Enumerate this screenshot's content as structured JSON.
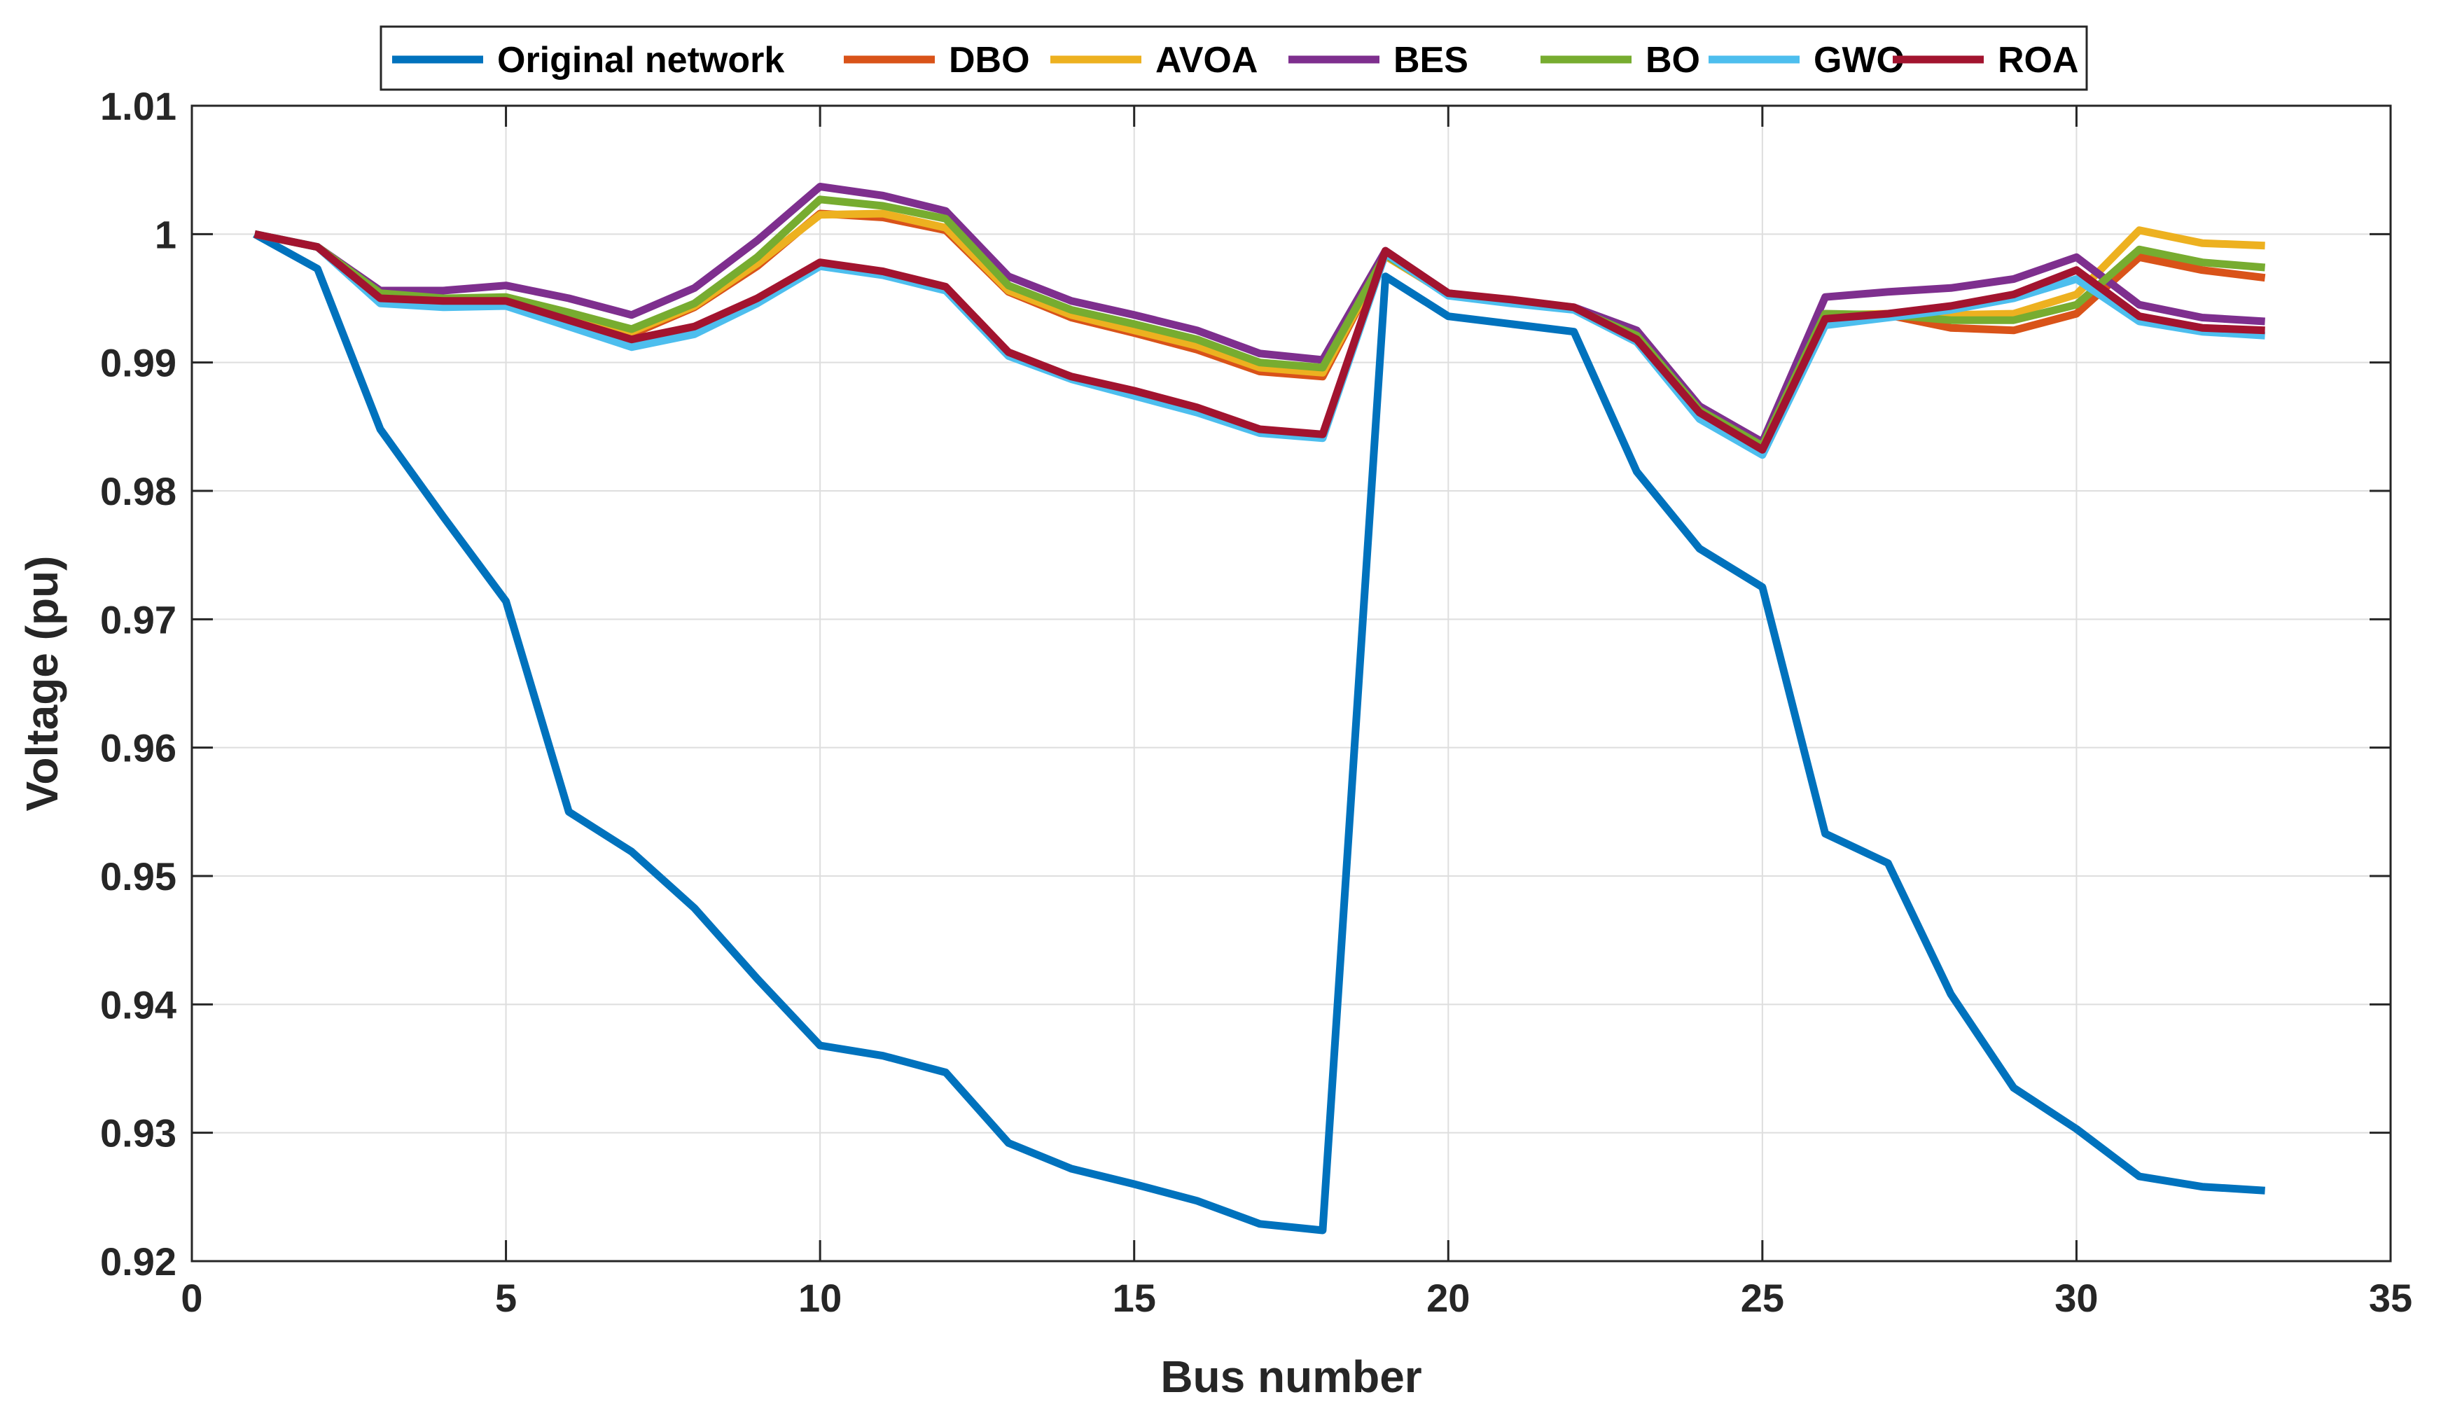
{
  "chart_data": {
    "type": "line",
    "title": "",
    "xlabel": "Bus number",
    "ylabel": "Voltage (pu)",
    "xlim": [
      0,
      35
    ],
    "ylim": [
      0.92,
      1.01
    ],
    "xticks": [
      0,
      5,
      10,
      15,
      20,
      25,
      30,
      35
    ],
    "xtick_labels": [
      "0",
      "5",
      "10",
      "15",
      "20",
      "25",
      "30",
      "35"
    ],
    "yticks": [
      0.92,
      0.93,
      0.94,
      0.95,
      0.96,
      0.97,
      0.98,
      0.99,
      1.0,
      1.01
    ],
    "ytick_labels": [
      "0.92",
      "0.93",
      "0.94",
      "0.95",
      "0.96",
      "0.97",
      "0.98",
      "0.99",
      "1",
      "1.01"
    ],
    "grid": true,
    "legend_position": "top",
    "x": [
      1,
      2,
      3,
      4,
      5,
      6,
      7,
      8,
      9,
      10,
      11,
      12,
      13,
      14,
      15,
      16,
      17,
      18,
      19,
      20,
      21,
      22,
      23,
      24,
      25,
      26,
      27,
      28,
      29,
      30,
      31,
      32,
      33
    ],
    "series": [
      {
        "name": "Original network",
        "color": "#0072BD",
        "values": [
          1.0,
          0.9973,
          0.9848,
          0.978,
          0.9714,
          0.955,
          0.9519,
          0.9475,
          0.942,
          0.9368,
          0.936,
          0.9347,
          0.9292,
          0.9272,
          0.926,
          0.9247,
          0.9229,
          0.9224,
          0.9967,
          0.9936,
          0.993,
          0.9924,
          0.9815,
          0.9755,
          0.9725,
          0.9533,
          0.951,
          0.9408,
          0.9335,
          0.9303,
          0.9266,
          0.9258,
          0.9255
        ]
      },
      {
        "name": "DBO",
        "color": "#D95319",
        "values": [
          1.0,
          0.999,
          0.9953,
          0.9948,
          0.9948,
          0.9935,
          0.9922,
          0.9943,
          0.9975,
          1.0016,
          1.0013,
          1.0003,
          0.9955,
          0.9935,
          0.9923,
          0.991,
          0.9893,
          0.9889,
          0.9983,
          0.9953,
          0.9948,
          0.9942,
          0.992,
          0.9862,
          0.9834,
          0.9935,
          0.9937,
          0.9927,
          0.9925,
          0.9938,
          0.9982,
          0.9972,
          0.9966
        ]
      },
      {
        "name": "AVOA",
        "color": "#EDB120",
        "values": [
          1.0,
          0.999,
          0.9953,
          0.9948,
          0.9948,
          0.9936,
          0.9924,
          0.9944,
          0.9977,
          1.0015,
          1.0016,
          1.0005,
          0.9956,
          0.9937,
          0.9925,
          0.9913,
          0.9896,
          0.9892,
          0.9983,
          0.9953,
          0.9948,
          0.9942,
          0.992,
          0.9862,
          0.9834,
          0.9937,
          0.9938,
          0.9937,
          0.9938,
          0.9953,
          1.0003,
          0.9993,
          0.9991
        ]
      },
      {
        "name": "BES",
        "color": "#7E2F8E",
        "values": [
          1.0,
          0.999,
          0.9956,
          0.9956,
          0.996,
          0.995,
          0.9937,
          0.9958,
          0.9995,
          1.0037,
          1.003,
          1.0018,
          0.9967,
          0.9948,
          0.9937,
          0.9925,
          0.9907,
          0.9902,
          0.9987,
          0.9954,
          0.9948,
          0.9943,
          0.9925,
          0.9866,
          0.9838,
          0.9951,
          0.9955,
          0.9958,
          0.9965,
          0.9982,
          0.9945,
          0.9935,
          0.9932
        ]
      },
      {
        "name": "BO",
        "color": "#77AC30",
        "values": [
          1.0,
          0.999,
          0.9954,
          0.995,
          0.9951,
          0.9939,
          0.9926,
          0.9946,
          0.9982,
          1.0027,
          1.0022,
          1.0012,
          0.996,
          0.9941,
          0.993,
          0.9918,
          0.99,
          0.9896,
          0.9984,
          0.9953,
          0.9948,
          0.9942,
          0.9921,
          0.9863,
          0.9835,
          0.9938,
          0.9937,
          0.9933,
          0.9933,
          0.9945,
          0.9988,
          0.9978,
          0.9974
        ]
      },
      {
        "name": "GWO",
        "color": "#4DBEEE",
        "values": [
          1.0,
          0.999,
          0.9946,
          0.9943,
          0.9944,
          0.9928,
          0.9912,
          0.9922,
          0.9946,
          0.9975,
          0.9968,
          0.9956,
          0.9905,
          0.9887,
          0.9874,
          0.9861,
          0.9845,
          0.9841,
          0.9985,
          0.9952,
          0.9946,
          0.9941,
          0.9916,
          0.9856,
          0.9828,
          0.9929,
          0.9935,
          0.9941,
          0.995,
          0.9965,
          0.9932,
          0.9924,
          0.9921
        ]
      },
      {
        "name": "ROA",
        "color": "#A2142F",
        "values": [
          1.0,
          0.999,
          0.995,
          0.9948,
          0.9948,
          0.9933,
          0.9918,
          0.9928,
          0.995,
          0.9978,
          0.9971,
          0.9959,
          0.9908,
          0.9889,
          0.9878,
          0.9865,
          0.9848,
          0.9844,
          0.9987,
          0.9954,
          0.9949,
          0.9943,
          0.9918,
          0.9861,
          0.9832,
          0.9934,
          0.9938,
          0.9944,
          0.9953,
          0.9972,
          0.9936,
          0.9927,
          0.9925
        ]
      }
    ]
  }
}
